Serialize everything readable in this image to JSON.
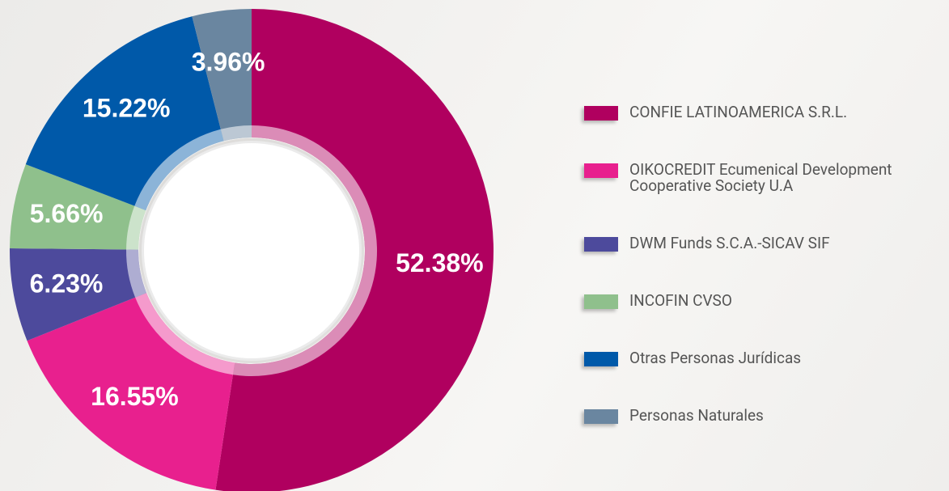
{
  "chart_data": {
    "type": "donut",
    "series": [
      {
        "name": "CONFIE LATINOAMERICA S.R.L.",
        "color": "#b0005f"
      },
      {
        "name": "OIKOCREDIT Ecumenical Development Cooperative Society U.A",
        "color": "#e8208e"
      },
      {
        "name": "DWM Funds S.C.A.-SICAV SIF",
        "color": "#4d4a9c"
      },
      {
        "name": "INCOFIN CVSO",
        "color": "#8fc08c"
      },
      {
        "name": "Otras Personas Jurídicas",
        "color": "#0059a9"
      },
      {
        "name": "Personas Naturales",
        "color": "#6a86a0"
      }
    ],
    "values": [
      52.38,
      16.55,
      6.23,
      5.66,
      15.22,
      3.96
    ],
    "value_labels": [
      "52.38%",
      "16.55%",
      "6.23%",
      "5.66%",
      "15.22%",
      "3.96%"
    ]
  }
}
